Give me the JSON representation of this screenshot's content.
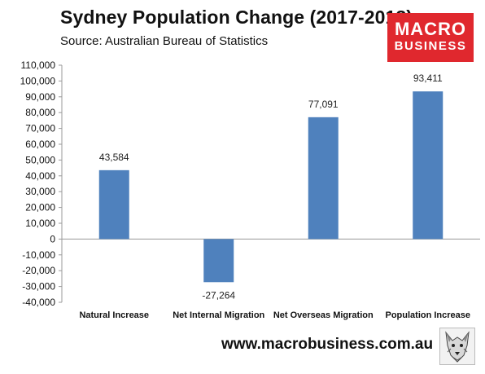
{
  "header": {
    "title": "Sydney Population Change (2017-2018)",
    "source": "Source: Australian Bureau of Statistics"
  },
  "logo": {
    "line1": "MACRO",
    "line2": "BUSINESS",
    "background": "#e0282e"
  },
  "footer": {
    "website": "www.macrobusiness.com.au",
    "mascot_icon": "wolf-icon"
  },
  "chart_data": {
    "type": "bar",
    "categories": [
      "Natural Increase",
      "Net Internal Migration",
      "Net Overseas Migration",
      "Population Increase"
    ],
    "values": [
      43584,
      -27264,
      77091,
      93411
    ],
    "data_labels": [
      "43,584",
      "-27,264",
      "77,091",
      "93,411"
    ],
    "title": "Sydney Population Change (2017-2018)",
    "xlabel": "",
    "ylabel": "",
    "ylim": [
      -40000,
      110000
    ],
    "y_ticks": [
      110000,
      100000,
      90000,
      80000,
      70000,
      60000,
      50000,
      40000,
      30000,
      20000,
      10000,
      0,
      -10000,
      -20000,
      -30000,
      -40000
    ],
    "y_tick_labels": [
      "110,000",
      "100,000",
      "90,000",
      "80,000",
      "70,000",
      "60,000",
      "50,000",
      "40,000",
      "30,000",
      "20,000",
      "10,000",
      "0",
      "-10,000",
      "-20,000",
      "-30,000",
      "-40,000"
    ],
    "grid": false,
    "legend": "none",
    "bar_color": "#4f81bd"
  }
}
